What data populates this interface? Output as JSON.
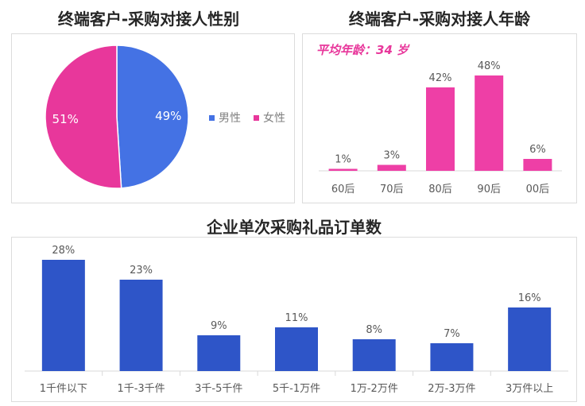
{
  "colors": {
    "male": "#4472e4",
    "female": "#e8379b",
    "age_bar": "#ee3fa6",
    "order_bar": "#2e55c8"
  },
  "gender_chart": {
    "title": "终端客户-采购对接人性别",
    "chart_data": {
      "type": "pie",
      "labels": [
        "男性",
        "女性"
      ],
      "values": [
        49,
        51
      ],
      "data_labels": [
        "49%",
        "51%"
      ],
      "legend_position": "right"
    }
  },
  "age_chart": {
    "title": "终端客户-采购对接人年龄",
    "average_label": "平均年龄：34 岁",
    "chart_data": {
      "type": "bar",
      "categories": [
        "60后",
        "70后",
        "80后",
        "90后",
        "00后"
      ],
      "values": [
        1,
        3,
        42,
        48,
        6
      ],
      "data_labels": [
        "1%",
        "3%",
        "42%",
        "48%",
        "6%"
      ]
    }
  },
  "order_chart": {
    "title": "企业单次采购礼品订单数",
    "chart_data": {
      "type": "bar",
      "categories": [
        "1千件以下",
        "1千-3千件",
        "3千-5千件",
        "5千-1万件",
        "1万-2万件",
        "2万-3万件",
        "3万件以上"
      ],
      "values": [
        28,
        23,
        9,
        11,
        8,
        7,
        16
      ],
      "data_labels": [
        "28%",
        "23%",
        "9%",
        "11%",
        "8%",
        "7%",
        "16%"
      ]
    }
  }
}
